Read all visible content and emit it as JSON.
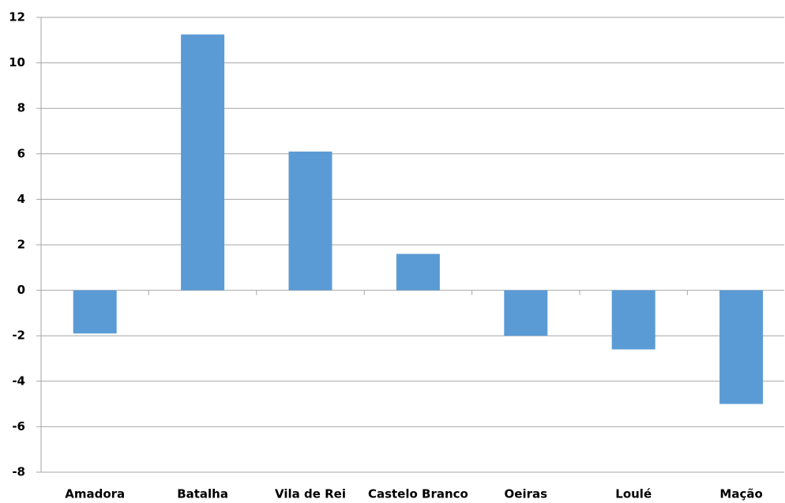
{
  "chart_data": {
    "type": "bar",
    "categories": [
      "Amadora",
      "Batalha",
      "Vila de Rei",
      "Castelo Branco",
      "Oeiras",
      "Loulé",
      "Mação"
    ],
    "values": [
      -1.9,
      11.25,
      6.1,
      1.6,
      -2.0,
      -2.6,
      -5.0
    ],
    "color": "#5b9bd5",
    "ylim": [
      -8,
      12
    ],
    "yticks": [
      -8,
      -6,
      -4,
      -2,
      0,
      2,
      4,
      6,
      8,
      10,
      12
    ],
    "grid": true
  }
}
